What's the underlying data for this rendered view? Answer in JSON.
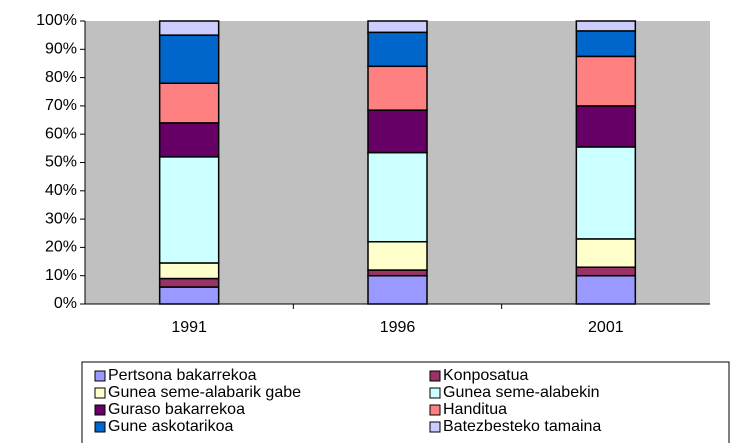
{
  "chart_data": {
    "type": "stacked_bar_100",
    "categories": [
      "1991",
      "1996",
      "2001"
    ],
    "series": [
      {
        "name": "Pertsona bakarrekoa",
        "color": "#9999ff",
        "values": [
          6,
          10,
          10
        ]
      },
      {
        "name": "Konposatua",
        "color": "#993366",
        "values": [
          3,
          2,
          3
        ]
      },
      {
        "name": "Gunea seme-alabarik gabe",
        "color": "#ffffcc",
        "values": [
          5.5,
          10,
          10
        ]
      },
      {
        "name": "Gunea seme-alabekin",
        "color": "#ccffff",
        "values": [
          37.5,
          31.5,
          32.5
        ]
      },
      {
        "name": "Guraso bakarrekoa",
        "color": "#660066",
        "values": [
          12,
          15,
          14.5
        ]
      },
      {
        "name": "Handitua",
        "color": "#ff8080",
        "values": [
          14,
          15.5,
          17.5
        ]
      },
      {
        "name": "Gune askotarikoa",
        "color": "#0066cc",
        "values": [
          17,
          12,
          9
        ]
      },
      {
        "name": "Batezbesteko tamaina",
        "color": "#ccccff",
        "values": [
          5,
          4,
          3.5
        ]
      }
    ],
    "ylim": [
      0,
      100
    ],
    "yticks": [
      {
        "value": 0,
        "label": "0%"
      },
      {
        "value": 10,
        "label": "10%"
      },
      {
        "value": 20,
        "label": "20%"
      },
      {
        "value": 30,
        "label": "30%"
      },
      {
        "value": 40,
        "label": "40%"
      },
      {
        "value": 50,
        "label": "50%"
      },
      {
        "value": 60,
        "label": "60%"
      },
      {
        "value": 70,
        "label": "70%"
      },
      {
        "value": 80,
        "label": "80%"
      },
      {
        "value": 90,
        "label": "90%"
      },
      {
        "value": 100,
        "label": "100%"
      }
    ],
    "plot_background": "#c0c0c0",
    "legend": "bottom"
  }
}
